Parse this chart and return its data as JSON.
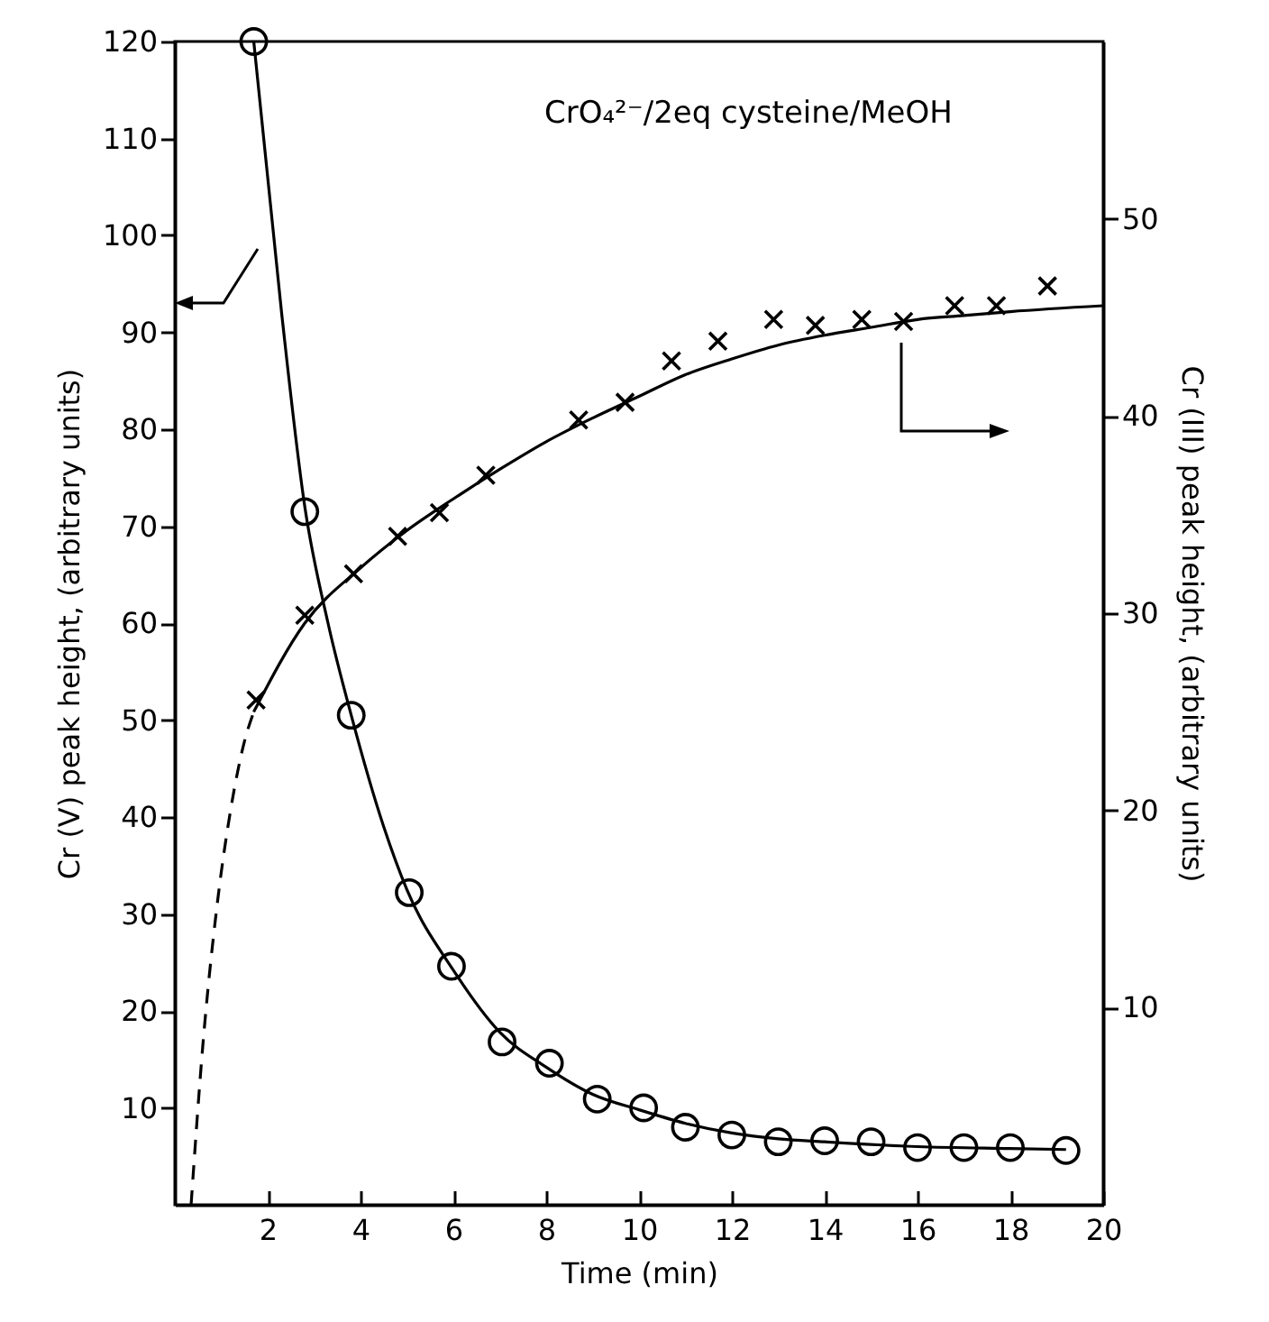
{
  "chart_data": {
    "type": "scatter",
    "title": "CrO₄²⁻/2eq cysteine/MeOH",
    "xlabel": "Time (min)",
    "ylabel": "Cr (V) peak height, (arbitrary units)",
    "y2label": "Cr (III) peak height, (arbitrary units)",
    "xlim": [
      0,
      20
    ],
    "xticks": [
      2,
      4,
      6,
      8,
      10,
      12,
      14,
      16,
      18,
      20
    ],
    "ylim": [
      0,
      120
    ],
    "yticks": [
      10,
      20,
      30,
      40,
      50,
      60,
      70,
      80,
      90,
      100,
      110,
      120
    ],
    "y2lim": [
      0,
      59
    ],
    "y2ticks": [
      10,
      20,
      30,
      40,
      50
    ],
    "grid": false,
    "series": [
      {
        "marker": "circle",
        "color": "#000000",
        "x": [
          1.7,
          2.8,
          3.8,
          5.05,
          5.96,
          7.05,
          8.07,
          9.1,
          10.1,
          11,
          12,
          13,
          14,
          15,
          16,
          17,
          18,
          19.2
        ],
        "values": [
          120,
          71.5,
          50.5,
          32.2,
          24.6,
          16.8,
          14.6,
          10.9,
          10,
          8,
          7.2,
          6.5,
          6.6,
          6.5,
          5.9,
          5.9,
          5.9,
          5.6
        ]
      },
      {
        "type": "line",
        "line_style": "solid",
        "color": "#000000",
        "x": [
          1.7,
          2.3,
          2.8,
          3.3,
          3.8,
          4.5,
          5,
          6,
          7,
          8,
          9,
          10,
          11,
          12,
          13,
          14,
          16,
          18,
          19.2
        ],
        "values": [
          120,
          92,
          72,
          60,
          50.5,
          39,
          32.5,
          24.2,
          17.8,
          14.2,
          11.4,
          9.8,
          8.4,
          7.4,
          6.8,
          6.5,
          6,
          5.8,
          5.7
        ]
      },
      {
        "axis": "y2",
        "marker": "cross",
        "color": "#000000",
        "x": [
          1.75,
          2.8,
          3.85,
          4.8,
          5.7,
          6.7,
          8.7,
          9.7,
          10.7,
          11.7,
          12.9,
          13.8,
          14.8,
          15.7,
          16.8,
          17.7,
          18.8
        ],
        "values": [
          25.6,
          29.9,
          32,
          33.9,
          35.1,
          37,
          39.8,
          40.7,
          42.8,
          43.8,
          44.9,
          44.6,
          44.9,
          44.8,
          45.6,
          45.6,
          46.6
        ]
      },
      {
        "type": "line",
        "axis": "y2",
        "line_style": "solid",
        "color": "#000000",
        "x": [
          1.7,
          2.8,
          4,
          5,
          6,
          7,
          8,
          9,
          10,
          11,
          12,
          13,
          14,
          15,
          16,
          17,
          18,
          20
        ],
        "values": [
          25,
          29.5,
          32.3,
          34.2,
          35.8,
          37.3,
          38.7,
          39.9,
          41,
          42.1,
          42.9,
          43.6,
          44.1,
          44.5,
          44.9,
          45.1,
          45.3,
          45.6
        ]
      },
      {
        "type": "line",
        "axis": "y2",
        "line_style": "dashed",
        "color": "#000000",
        "x": [
          0.35,
          0.6,
          0.9,
          1.2,
          1.5,
          1.7
        ],
        "values": [
          0,
          8,
          15,
          20,
          23.5,
          25
        ]
      }
    ]
  }
}
